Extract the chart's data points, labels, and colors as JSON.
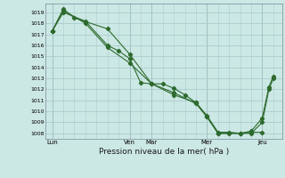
{
  "bg_color": "#cce8e4",
  "grid_color": "#aacccc",
  "line_color": "#2d6a2d",
  "marker_color": "#2d6a2d",
  "xlabel": "Pression niveau de la mer( hPa )",
  "ylim": [
    1007.5,
    1019.8
  ],
  "yticks": [
    1008,
    1009,
    1010,
    1011,
    1012,
    1013,
    1014,
    1015,
    1016,
    1017,
    1018,
    1019
  ],
  "xtick_labels": [
    "Lun",
    "Ven",
    "Mar",
    "Mer",
    "Jeu"
  ],
  "xtick_positions": [
    0,
    3.5,
    4.5,
    7.0,
    9.5
  ],
  "xvlines": [
    0,
    3.5,
    4.5,
    7.0,
    9.5
  ],
  "line1": [
    [
      0.0,
      1017.3
    ],
    [
      0.5,
      1019.0
    ],
    [
      1.5,
      1018.2
    ],
    [
      2.5,
      1016.0
    ],
    [
      3.0,
      1015.5
    ],
    [
      3.5,
      1014.8
    ],
    [
      4.0,
      1012.6
    ],
    [
      4.5,
      1012.5
    ],
    [
      5.0,
      1012.5
    ],
    [
      5.5,
      1012.1
    ],
    [
      6.0,
      1011.5
    ],
    [
      6.5,
      1010.8
    ],
    [
      7.0,
      1009.6
    ],
    [
      7.5,
      1008.1
    ],
    [
      8.0,
      1008.1
    ],
    [
      8.5,
      1008.0
    ],
    [
      9.0,
      1008.1
    ],
    [
      9.5,
      1008.1
    ]
  ],
  "line2": [
    [
      0.0,
      1017.3
    ],
    [
      0.5,
      1019.2
    ],
    [
      1.5,
      1018.0
    ],
    [
      2.5,
      1015.8
    ],
    [
      3.5,
      1014.4
    ],
    [
      4.5,
      1012.5
    ],
    [
      5.5,
      1011.7
    ],
    [
      6.5,
      1010.7
    ],
    [
      7.0,
      1009.5
    ],
    [
      7.5,
      1008.0
    ],
    [
      8.0,
      1008.0
    ],
    [
      8.5,
      1008.0
    ],
    [
      9.0,
      1008.0
    ],
    [
      9.5,
      1009.0
    ],
    [
      9.8,
      1012.0
    ],
    [
      10.0,
      1013.0
    ]
  ],
  "line3": [
    [
      0.0,
      1017.3
    ],
    [
      0.5,
      1019.3
    ],
    [
      1.0,
      1018.5
    ],
    [
      2.5,
      1017.5
    ],
    [
      3.5,
      1015.2
    ],
    [
      4.5,
      1012.5
    ],
    [
      5.5,
      1011.5
    ],
    [
      6.5,
      1010.8
    ],
    [
      7.0,
      1009.5
    ],
    [
      7.5,
      1008.0
    ],
    [
      8.5,
      1008.0
    ],
    [
      9.0,
      1008.2
    ],
    [
      9.5,
      1009.4
    ],
    [
      9.8,
      1012.2
    ],
    [
      10.0,
      1013.2
    ]
  ],
  "xlim": [
    -0.3,
    10.4
  ]
}
